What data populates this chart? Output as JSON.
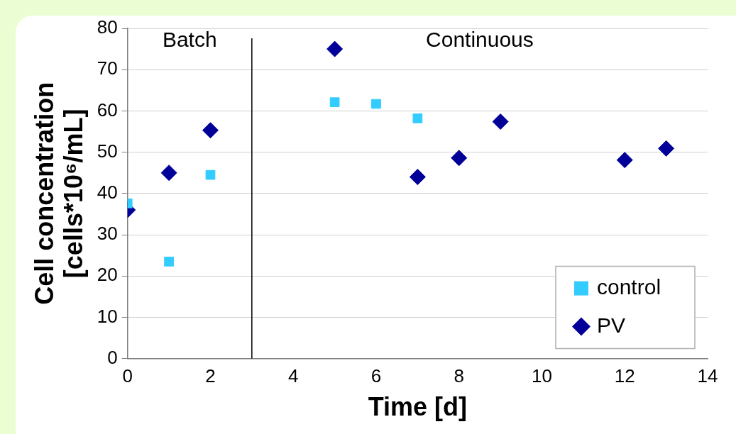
{
  "chart_data": {
    "type": "scatter",
    "xlabel": "Time [d]",
    "ylabel": "Cell concentration\n[cells*10⁶/mL]",
    "xlim": [
      0,
      14
    ],
    "xticks": [
      0,
      2,
      4,
      6,
      8,
      10,
      12,
      14
    ],
    "ylim": [
      0,
      80
    ],
    "yticks": [
      0,
      10,
      20,
      30,
      40,
      50,
      60,
      70,
      80
    ],
    "grid": "y",
    "legend": "bottom right",
    "series": [
      {
        "name": "control",
        "color": "#33ccff",
        "marker": "square",
        "x": [
          0,
          1,
          2,
          5,
          6,
          7
        ],
        "values": [
          37.6,
          23.5,
          44.5,
          62.1,
          61.7,
          58.2
        ]
      },
      {
        "name": "PV",
        "color": "#000099",
        "marker": "diamond",
        "x": [
          0,
          1,
          2,
          5,
          7,
          8,
          9,
          12,
          13
        ],
        "values": [
          36,
          45,
          55.3,
          75,
          44,
          48.6,
          57.4,
          48.1,
          50.9
        ]
      }
    ],
    "ref_lines": [
      {
        "axis": "x",
        "value": 3,
        "color": "#000000"
      }
    ],
    "annotations": [
      "Batch",
      "Continuous"
    ]
  }
}
